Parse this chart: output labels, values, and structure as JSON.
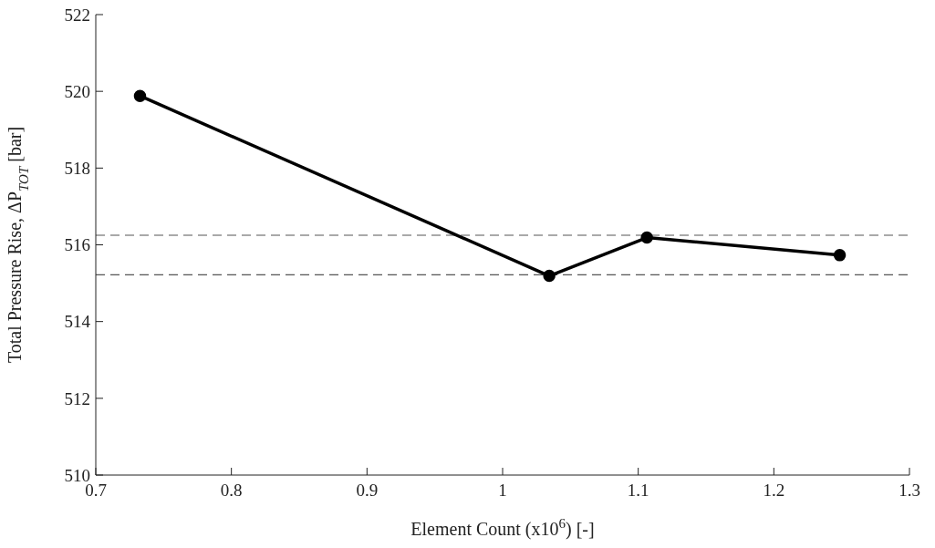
{
  "chart_data": {
    "type": "line",
    "xlabel": "Element Count (x10$^{6}$) [-]",
    "ylabel": "Total Pressure Rise, ΔP$_{TOT}$ [bar]",
    "x": [
      0.7326,
      1.0344,
      1.1064,
      1.2486
    ],
    "series": [
      {
        "color": "#000000",
        "values": [
          519.88,
          515.19,
          516.19,
          515.73
        ]
      }
    ],
    "xlim": [
      0.7,
      1.3
    ],
    "xticks": [
      0.7,
      0.8,
      0.9,
      1,
      1.1,
      1.2,
      1.3
    ],
    "ylim": [
      510,
      522
    ],
    "yticks": [
      510,
      512,
      514,
      516,
      518,
      520,
      522
    ],
    "ref_lines": [
      {
        "axis": "y",
        "value": 516.25,
        "color": "#555555",
        "line_style": "dashed"
      },
      {
        "axis": "y",
        "value": 515.22,
        "color": "#555555",
        "line_style": "dashed"
      }
    ],
    "grid": false,
    "legend": false,
    "marker": "circle",
    "line_style": "solid"
  }
}
